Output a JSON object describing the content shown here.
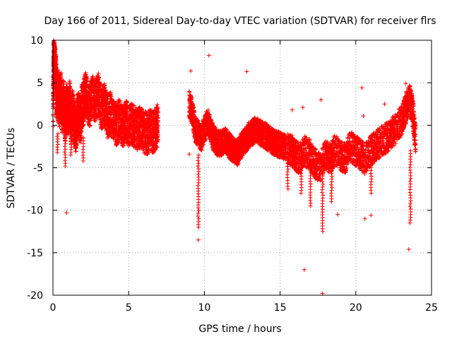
{
  "chart_data": {
    "type": "scatter",
    "title": "Day 166 of 2011, Sidereal Day-to-day VTEC variation (SDTVAR) for receiver flrs",
    "xlabel": "GPS time / hours",
    "ylabel": "SDTVAR / TECUs",
    "xlim": [
      0,
      25
    ],
    "ylim": [
      -20,
      10
    ],
    "xticks": [
      0,
      5,
      10,
      15,
      20,
      25
    ],
    "yticks": [
      -20,
      -15,
      -10,
      -5,
      0,
      5,
      10
    ],
    "xtick_labels": [
      "0",
      "5",
      "10",
      "15",
      "20",
      "25"
    ],
    "ytick_labels": [
      "-20",
      "-15",
      "-10",
      "-5",
      "0",
      "5",
      "10"
    ],
    "grid": true,
    "marker": "+",
    "color": "#ff0000",
    "series": [
      {
        "name": "SDTVAR",
        "segments": [
          {
            "x": [
              0.0,
              0.05,
              0.1,
              0.15,
              0.2,
              0.25,
              0.3,
              0.35,
              0.4,
              0.45,
              0.5,
              0.6,
              0.7,
              0.8,
              0.9,
              1.0,
              1.1,
              1.2,
              1.3,
              1.4,
              1.5,
              1.6,
              1.7,
              1.8,
              1.9,
              2.0,
              2.1,
              2.2,
              2.4,
              2.6,
              2.8,
              3.0,
              3.2,
              3.4,
              3.6,
              3.8,
              4.0,
              4.2,
              4.4,
              4.6,
              4.8,
              5.0,
              5.2,
              5.4,
              5.6,
              5.8,
              6.0,
              6.2,
              6.4,
              6.6,
              6.8,
              6.95
            ],
            "y": [
              1.5,
              8.5,
              7.8,
              6.5,
              5.5,
              3.0,
              4.5,
              2.5,
              3.8,
              2.0,
              4.2,
              1.5,
              3.0,
              0.5,
              2.5,
              1.0,
              2.8,
              0.2,
              1.8,
              0.5,
              -1.0,
              0.8,
              1.5,
              0.3,
              2.2,
              2.5,
              3.5,
              3.8,
              2.0,
              3.5,
              2.8,
              3.8,
              2.0,
              2.5,
              1.0,
              1.5,
              0.5,
              0.0,
              0.8,
              -0.2,
              0.5,
              0.0,
              0.3,
              -0.3,
              -0.5,
              -0.2,
              -0.8,
              -1.0,
              -0.6,
              -0.9,
              -0.4,
              0.2
            ],
            "band": 2.5
          },
          {
            "x": [
              9.0,
              9.2,
              9.4,
              9.6,
              9.8,
              10.0,
              10.2,
              10.4,
              10.6,
              10.8,
              11.0,
              11.2,
              11.4,
              11.6,
              11.8,
              12.0,
              12.2,
              12.4,
              12.6,
              12.8,
              13.0,
              13.2,
              13.4,
              13.6,
              13.8,
              14.0,
              14.2,
              14.4,
              14.6,
              14.8,
              15.0,
              15.2,
              15.4
            ],
            "y": [
              2.5,
              1.5,
              -0.5,
              -1.0,
              -1.5,
              -0.5,
              0.5,
              -0.5,
              -1.5,
              -2.0,
              -2.2,
              -2.0,
              -1.8,
              -2.2,
              -2.8,
              -3.0,
              -3.2,
              -2.5,
              -2.0,
              -1.5,
              -1.0,
              -0.8,
              -0.5,
              -0.8,
              -1.0,
              -1.2,
              -1.5,
              -1.8,
              -2.0,
              -2.2,
              -2.3,
              -2.5,
              -2.6
            ],
            "band": 1.5
          },
          {
            "x": [
              15.5,
              15.8,
              16.0,
              16.3,
              16.6,
              17.0,
              17.3,
              17.6,
              18.0,
              18.3,
              18.6,
              19.0,
              19.3,
              19.6,
              20.0,
              20.3,
              20.6,
              21.0,
              21.3,
              21.6,
              22.0,
              22.3,
              22.6,
              23.0,
              23.2,
              23.4,
              23.6,
              23.8,
              23.95
            ],
            "y": [
              -2.8,
              -3.0,
              -3.5,
              -4.0,
              -3.0,
              -3.5,
              -4.5,
              -5.0,
              -3.5,
              -4.0,
              -3.0,
              -3.5,
              -4.0,
              -2.5,
              -3.0,
              -3.5,
              -4.0,
              -3.0,
              -2.5,
              -2.0,
              -1.5,
              -1.0,
              -0.5,
              0.5,
              1.5,
              2.5,
              3.0,
              1.0,
              -2.0
            ],
            "band": 1.8
          }
        ],
        "spikes": [
          {
            "x": 0.3,
            "y": [
              -1.0,
              -3.2
            ]
          },
          {
            "x": 0.8,
            "y": [
              -1.5,
              -4.8
            ]
          },
          {
            "x": 1.2,
            "y": [
              -1.0,
              -3.5
            ]
          },
          {
            "x": 2.0,
            "y": [
              -1.5,
              -4.2
            ]
          },
          {
            "x": 9.6,
            "y": [
              -3.5,
              -12.0
            ]
          },
          {
            "x": 15.5,
            "y": [
              -2.5,
              -7.5
            ]
          },
          {
            "x": 16.4,
            "y": [
              -3.0,
              -8.0
            ]
          },
          {
            "x": 17.0,
            "y": [
              -4.0,
              -9.5
            ]
          },
          {
            "x": 17.8,
            "y": [
              -4.0,
              -12.5
            ]
          },
          {
            "x": 18.4,
            "y": [
              -4.0,
              -9.0
            ]
          },
          {
            "x": 21.0,
            "y": [
              -4.0,
              -8.0
            ]
          },
          {
            "x": 23.6,
            "y": [
              -3.0,
              -11.5
            ]
          }
        ],
        "outliers": [
          {
            "x": 0.9,
            "y": -10.3
          },
          {
            "x": 9.6,
            "y": -13.5
          },
          {
            "x": 9.0,
            "y": -3.4
          },
          {
            "x": 9.1,
            "y": 6.4
          },
          {
            "x": 10.3,
            "y": 8.2
          },
          {
            "x": 12.8,
            "y": 6.3
          },
          {
            "x": 15.8,
            "y": 1.8
          },
          {
            "x": 16.5,
            "y": 2.1
          },
          {
            "x": 16.6,
            "y": -17.0
          },
          {
            "x": 17.7,
            "y": 3.0
          },
          {
            "x": 17.8,
            "y": -19.8
          },
          {
            "x": 18.8,
            "y": -10.5
          },
          {
            "x": 20.4,
            "y": 4.4
          },
          {
            "x": 20.5,
            "y": 1.1
          },
          {
            "x": 20.6,
            "y": -11.0
          },
          {
            "x": 21.0,
            "y": -10.6
          },
          {
            "x": 21.9,
            "y": 2.5
          },
          {
            "x": 23.3,
            "y": 4.9
          },
          {
            "x": 23.5,
            "y": -14.6
          }
        ]
      }
    ]
  }
}
